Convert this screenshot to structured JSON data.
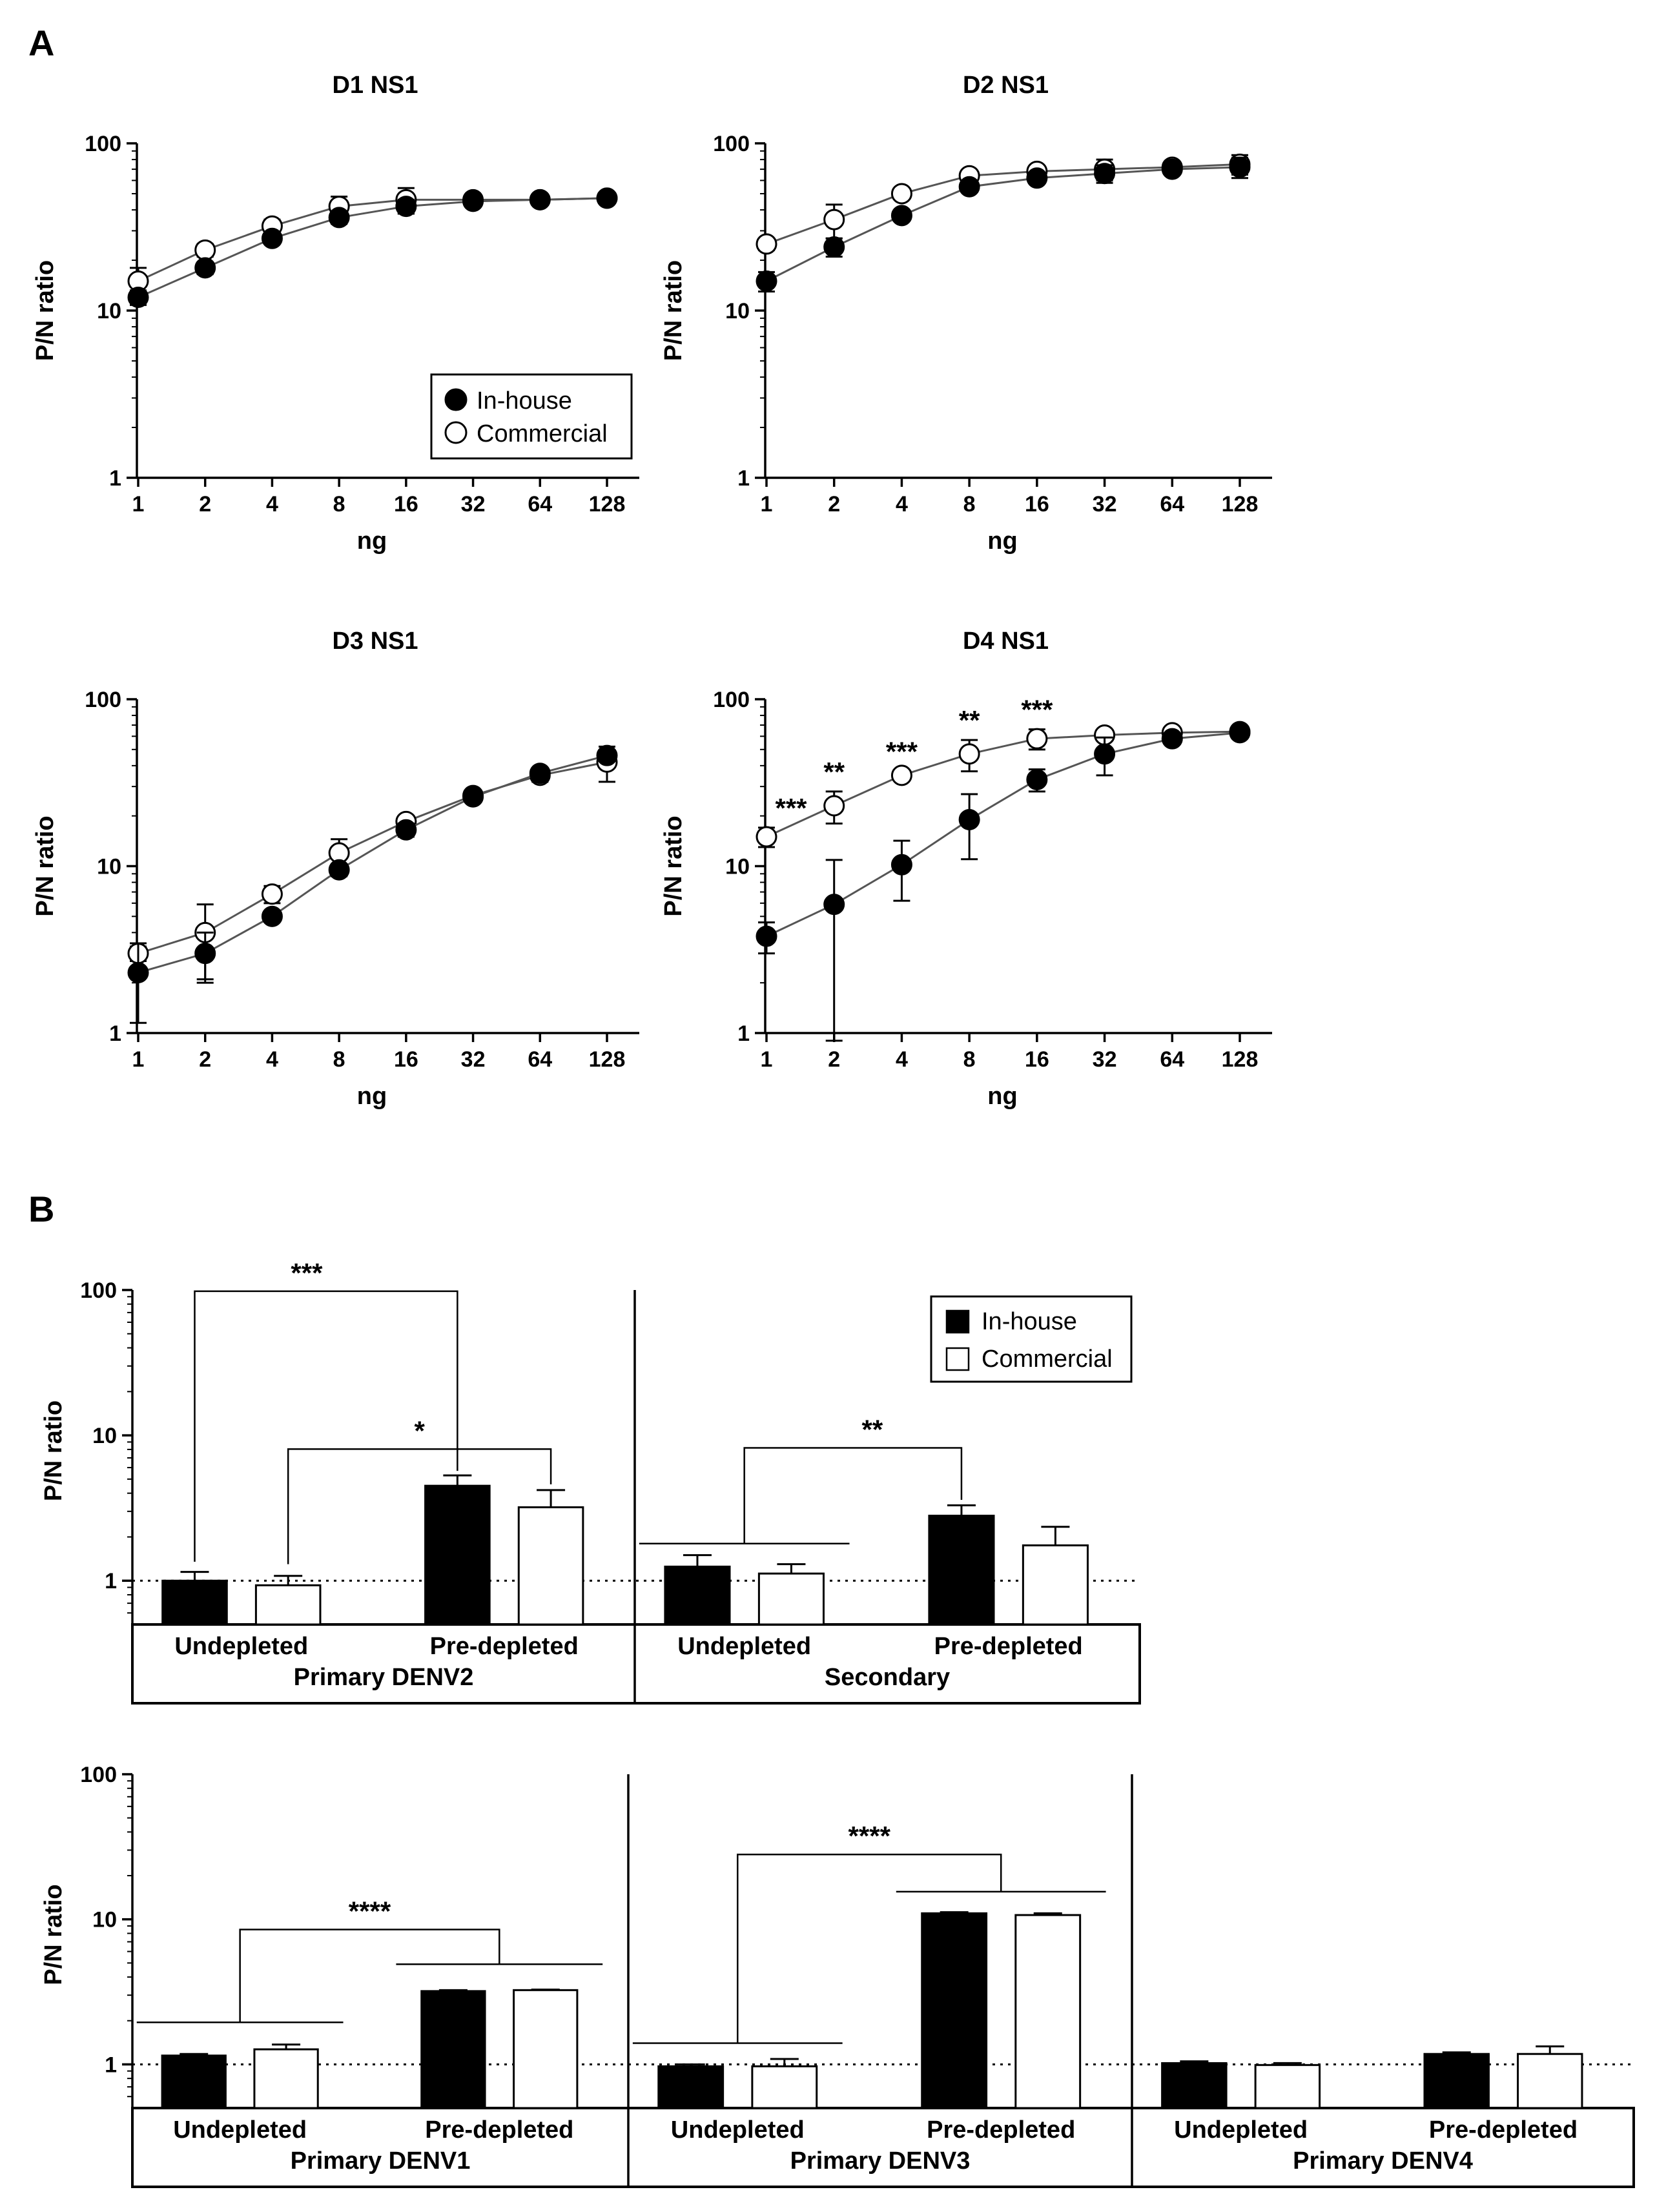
{
  "figure": {
    "panel_a_label": "A",
    "panel_b_label": "B"
  },
  "colors": {
    "in_house": "#000000",
    "commercial": "#ffffff",
    "line": "#555555"
  },
  "panel_a": {
    "legend": {
      "in_house": "In-house",
      "commercial": "Commercial"
    },
    "xlabel": "ng",
    "ylabel": "P/N ratio"
  },
  "panel_b": {
    "legend": {
      "in_house": "In-house",
      "commercial": "Commercial"
    },
    "ylabel": "P/N ratio"
  },
  "chart_data": [
    {
      "type": "line",
      "title": "D1 NS1",
      "xlabel": "ng",
      "ylabel": "P/N ratio",
      "x": [
        1,
        2,
        4,
        8,
        16,
        32,
        64,
        128
      ],
      "x_scale": "log2",
      "y_scale": "log10",
      "ylim": [
        1,
        100
      ],
      "y_ticks": [
        1,
        10,
        100
      ],
      "legend": "inside bottom-right",
      "series": [
        {
          "name": "In-house",
          "marker": "filled circle",
          "values": [
            12,
            18,
            27,
            36,
            42,
            45,
            46,
            47
          ],
          "errors": [
            1.2,
            1.5,
            2,
            3,
            4,
            2,
            2,
            2
          ]
        },
        {
          "name": "Commercial",
          "marker": "open circle",
          "values": [
            15,
            23,
            32,
            42,
            46,
            46,
            46,
            47
          ],
          "errors": [
            3,
            2,
            3,
            6,
            8,
            2,
            2,
            2
          ]
        }
      ],
      "annotations": []
    },
    {
      "type": "line",
      "title": "D2 NS1",
      "xlabel": "ng",
      "ylabel": "P/N ratio",
      "x": [
        1,
        2,
        4,
        8,
        16,
        32,
        64,
        128
      ],
      "x_scale": "log2",
      "y_scale": "log10",
      "ylim": [
        1,
        100
      ],
      "y_ticks": [
        1,
        10,
        100
      ],
      "series": [
        {
          "name": "In-house",
          "marker": "filled circle",
          "values": [
            15,
            24,
            37,
            55,
            62,
            66,
            70,
            72
          ],
          "errors": [
            2,
            3,
            2,
            3,
            3,
            8,
            5,
            10
          ]
        },
        {
          "name": "Commercial",
          "marker": "open circle",
          "values": [
            25,
            35,
            50,
            64,
            68,
            70,
            72,
            75
          ],
          "errors": [
            2,
            8,
            3,
            3,
            3,
            10,
            5,
            10
          ]
        }
      ],
      "annotations": []
    },
    {
      "type": "line",
      "title": "D3 NS1",
      "xlabel": "ng",
      "ylabel": "P/N ratio",
      "x": [
        1,
        2,
        4,
        8,
        16,
        32,
        64,
        128
      ],
      "x_scale": "log2",
      "y_scale": "log10",
      "ylim": [
        1,
        100
      ],
      "y_ticks": [
        1,
        10,
        100
      ],
      "series": [
        {
          "name": "In-house",
          "marker": "filled circle",
          "values": [
            2.3,
            3.0,
            5.0,
            9.5,
            16.5,
            26,
            36,
            46
          ],
          "errors": [
            1.15,
            1.0,
            0.3,
            0.8,
            1.5,
            1.5,
            2,
            3
          ]
        },
        {
          "name": "Commercial",
          "marker": "open circle",
          "values": [
            3.0,
            4.0,
            6.8,
            12,
            18.5,
            26.5,
            35,
            42
          ],
          "errors": [
            0.3,
            1.9,
            0.8,
            2.5,
            1.5,
            1.5,
            3,
            10
          ]
        }
      ],
      "annotations": []
    },
    {
      "type": "line",
      "title": "D4 NS1",
      "xlabel": "ng",
      "ylabel": "P/N ratio",
      "x": [
        1,
        2,
        4,
        8,
        16,
        32,
        64,
        128
      ],
      "x_scale": "log2",
      "y_scale": "log10",
      "ylim": [
        1,
        100
      ],
      "y_ticks": [
        1,
        10,
        100
      ],
      "series": [
        {
          "name": "In-house",
          "marker": "filled circle",
          "values": [
            3.8,
            5.9,
            10.2,
            19,
            33,
            47,
            58,
            63
          ],
          "errors": [
            0.8,
            5,
            4,
            8,
            5,
            12,
            3,
            3
          ]
        },
        {
          "name": "Commercial",
          "marker": "open circle",
          "values": [
            15,
            23,
            35,
            47,
            58,
            61,
            63,
            64
          ],
          "errors": [
            2,
            5,
            2,
            10,
            8,
            2,
            2,
            2
          ]
        }
      ],
      "annotations": [
        {
          "x": 1,
          "text": "***"
        },
        {
          "x": 2,
          "text": "**"
        },
        {
          "x": 4,
          "text": "***"
        },
        {
          "x": 8,
          "text": "**"
        },
        {
          "x": 16,
          "text": "***"
        }
      ]
    },
    {
      "type": "bar",
      "title": "",
      "ylabel": "P/N ratio",
      "y_scale": "log10",
      "ylim": [
        0.5,
        100
      ],
      "y_ticks": [
        1,
        10,
        100
      ],
      "reference_line": 1,
      "legend": "top-right",
      "groups": [
        {
          "label": "Primary DENV2",
          "categories": [
            "Undepleted",
            "Pre-depleted"
          ],
          "series": [
            {
              "name": "In-house",
              "values": [
                1.0,
                4.5
              ],
              "errors": [
                0.15,
                0.8
              ]
            },
            {
              "name": "Commercial",
              "values": [
                0.93,
                3.2
              ],
              "errors": [
                0.15,
                1.0
              ]
            }
          ],
          "comparisons": [
            {
              "from": "Undepleted In-house",
              "to": "Pre-depleted In-house",
              "text": "***"
            },
            {
              "from": "Undepleted Commercial",
              "to": "Pre-depleted Commercial",
              "text": "*"
            }
          ]
        },
        {
          "label": "Secondary",
          "categories": [
            "Undepleted",
            "Pre-depleted"
          ],
          "series": [
            {
              "name": "In-house",
              "values": [
                1.25,
                2.8
              ],
              "errors": [
                0.25,
                0.5
              ]
            },
            {
              "name": "Commercial",
              "values": [
                1.12,
                1.75
              ],
              "errors": [
                0.18,
                0.6
              ]
            }
          ],
          "comparisons": [
            {
              "from": "Undepleted",
              "to": "Pre-depleted In-house",
              "text": "**"
            }
          ]
        }
      ]
    },
    {
      "type": "bar",
      "title": "",
      "ylabel": "P/N ratio",
      "y_scale": "log10",
      "ylim": [
        0.5,
        100
      ],
      "y_ticks": [
        1,
        10,
        100
      ],
      "reference_line": 1,
      "groups": [
        {
          "label": "Primary DENV1",
          "categories": [
            "Undepleted",
            "Pre-depleted"
          ],
          "series": [
            {
              "name": "In-house",
              "values": [
                1.15,
                3.2
              ],
              "errors": [
                0.03,
                0.05
              ]
            },
            {
              "name": "Commercial",
              "values": [
                1.27,
                3.25
              ],
              "errors": [
                0.1,
                0.03
              ]
            }
          ],
          "comparisons": [
            {
              "from": "Undepleted",
              "to": "Pre-depleted",
              "text": "****"
            }
          ]
        },
        {
          "label": "Primary DENV3",
          "categories": [
            "Undepleted",
            "Pre-depleted"
          ],
          "series": [
            {
              "name": "In-house",
              "values": [
                0.97,
                11.0
              ],
              "errors": [
                0.03,
                0.2
              ]
            },
            {
              "name": "Commercial",
              "values": [
                0.97,
                10.7
              ],
              "errors": [
                0.12,
                0.3
              ]
            }
          ],
          "comparisons": [
            {
              "from": "Undepleted",
              "to": "Pre-depleted",
              "text": "****"
            }
          ]
        },
        {
          "label": "Primary DENV4",
          "categories": [
            "Undepleted",
            "Pre-depleted"
          ],
          "series": [
            {
              "name": "In-house",
              "values": [
                1.02,
                1.18
              ],
              "errors": [
                0.03,
                0.03
              ]
            },
            {
              "name": "Commercial",
              "values": [
                0.99,
                1.18
              ],
              "errors": [
                0.03,
                0.15
              ]
            }
          ],
          "comparisons": []
        }
      ]
    }
  ]
}
